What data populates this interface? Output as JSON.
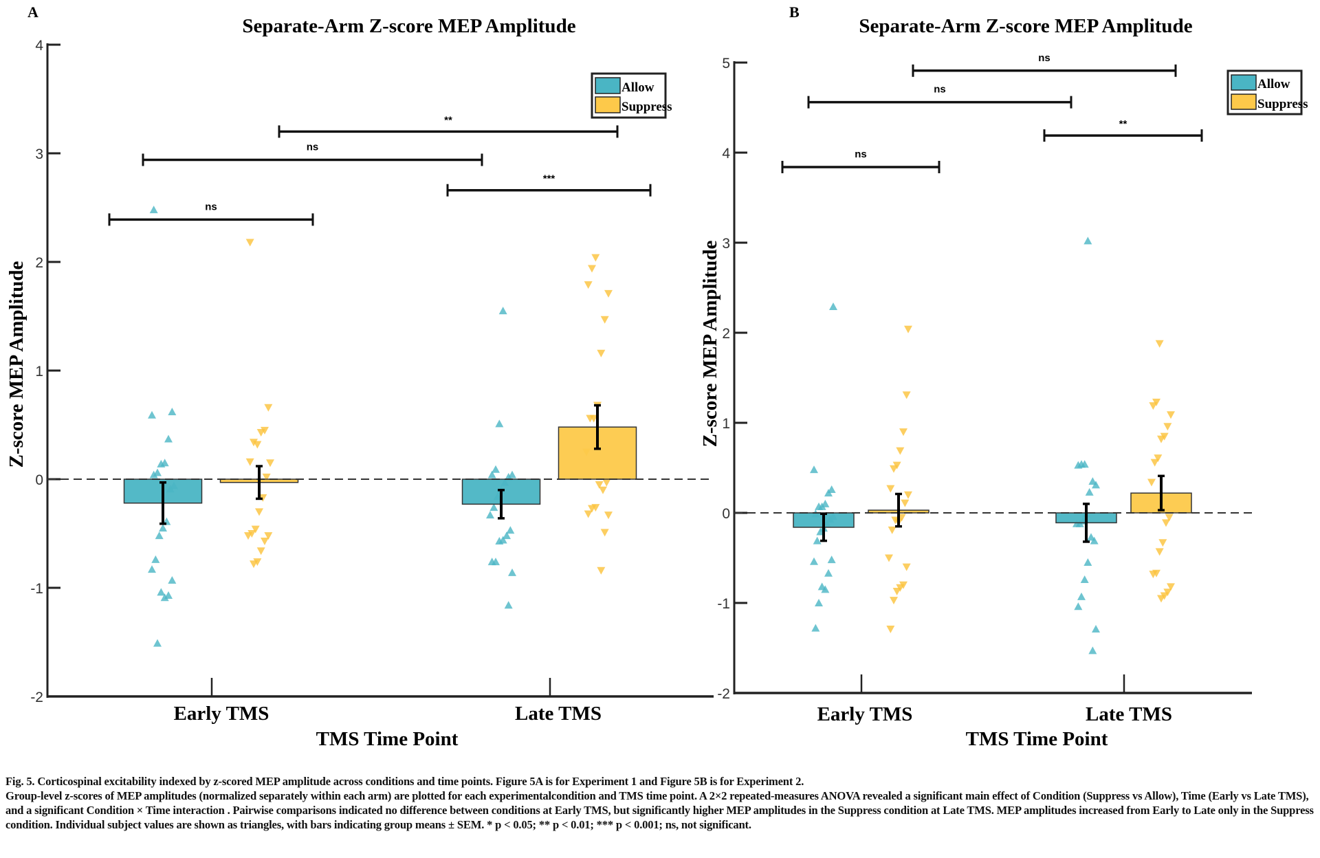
{
  "caption": {
    "line1": "Fig. 5. Corticospinal excitability indexed by z-scored MEP amplitude across conditions and time points. Figure 5A is for Experiment 1 and Figure 5B is for Experiment 2.",
    "body": "Group-level z-scores of MEP amplitudes (normalized separately within each arm) are plotted for each experimentalcondition and TMS time point. A 2×2 repeated-measures ANOVA revealed a significant main effect of Condition (Suppress vs Allow), Time (Early vs Late TMS), and a significant Condition × Time interaction . Pairwise comparisons indicated no difference between conditions at Early TMS, but significantly higher MEP amplitudes in the Suppress condition at Late TMS. MEP amplitudes increased from Early to Late only in the Suppress condition. Individual subject values are shown as triangles, with bars indicating group means ± SEM. * p < 0.05; ** p < 0.01; *** p < 0.001; ns, not significant."
  },
  "colors": {
    "allow": "#4ab5c4",
    "suppress": "#fdc94a",
    "allow_point": "#4ab5c4",
    "suppress_point": "#fbc23a"
  },
  "chart_data": [
    {
      "panel": "A",
      "type": "bar",
      "title": "Separate-Arm Z-score MEP Amplitude",
      "xlabel": "TMS Time Point",
      "ylabel": "Z-score MEP Amplitude",
      "ylim": [
        -2,
        4
      ],
      "yticks": [
        "-2",
        "-1",
        "0",
        "1",
        "2",
        "3",
        "4"
      ],
      "categories": [
        "Early TMS",
        "Late TMS"
      ],
      "legend": {
        "position": "top-right",
        "entries": [
          "Allow",
          "Suppress"
        ]
      },
      "reference_line": {
        "y": 0,
        "style": "dashed"
      },
      "series": [
        {
          "name": "Allow",
          "marker": "triangle-up",
          "values": [
            -0.22,
            -0.23
          ],
          "sem": [
            0.19,
            0.13
          ],
          "points": [
            [
              0.59,
              0.62,
              0.37,
              0.15,
              0.14,
              0.06,
              0.04,
              -0.06,
              -0.09,
              -0.39,
              -0.45,
              -0.52,
              -0.74,
              -0.83,
              -0.93,
              -1.07,
              -1.09,
              -1.04,
              -1.51,
              2.48
            ],
            [
              1.55,
              0.51,
              0.09,
              0.04,
              0.04,
              0.02,
              -0.03,
              -0.1,
              -0.16,
              -0.26,
              -0.33,
              -0.47,
              -0.52,
              -0.56,
              -0.57,
              -0.76,
              -0.76,
              -0.86,
              -1.16
            ]
          ]
        },
        {
          "name": "Suppress",
          "marker": "triangle-down",
          "values": [
            -0.03,
            0.48
          ],
          "sem": [
            0.15,
            0.2
          ],
          "points": [
            [
              0.66,
              0.45,
              0.43,
              0.32,
              0.34,
              0.16,
              0.15,
              0.02,
              -0.17,
              -0.3,
              -0.46,
              -0.5,
              -0.52,
              -0.52,
              -0.57,
              -0.66,
              -0.76,
              -0.78,
              2.18
            ],
            [
              2.04,
              1.94,
              1.79,
              1.71,
              1.47,
              1.16,
              0.68,
              0.56,
              0.56,
              0.25,
              -0.03,
              -0.1,
              -0.05,
              -0.26,
              -0.27,
              -0.32,
              -0.33,
              -0.49,
              -0.84
            ]
          ]
        }
      ],
      "significance": [
        {
          "from": "Allow|Early TMS",
          "to": "Suppress|Early TMS",
          "label": "ns",
          "y": 2.39
        },
        {
          "from": "Allow|Early TMS",
          "to": "Allow|Late TMS",
          "label": "ns",
          "y": 2.94
        },
        {
          "from": "Allow|Late TMS",
          "to": "Suppress|Late TMS",
          "label": "***",
          "y": 2.66
        },
        {
          "from": "Suppress|Early TMS",
          "to": "Suppress|Late TMS",
          "label": "**",
          "y": 3.2
        }
      ]
    },
    {
      "panel": "B",
      "type": "bar",
      "title": "Separate-Arm Z-score MEP Amplitude",
      "xlabel": "TMS Time Point",
      "ylabel": "Z-score MEP Amplitude",
      "ylim": [
        -2,
        5
      ],
      "yticks": [
        "-2",
        "-1",
        "0",
        "1",
        "2",
        "3",
        "4",
        "5"
      ],
      "categories": [
        "Early TMS",
        "Late TMS"
      ],
      "legend": {
        "position": "top-right",
        "entries": [
          "Allow",
          "Suppress"
        ]
      },
      "reference_line": {
        "y": 0,
        "style": "dashed"
      },
      "series": [
        {
          "name": "Allow",
          "marker": "triangle-up",
          "values": [
            -0.16,
            -0.11
          ],
          "sem": [
            0.15,
            0.21
          ],
          "points": [
            [
              0.48,
              0.26,
              0.22,
              0.1,
              0.07,
              0.07,
              -0.01,
              -0.04,
              -0.07,
              -0.12,
              -0.17,
              -0.21,
              -0.31,
              -0.54,
              -0.52,
              -0.67,
              -0.85,
              -0.82,
              -1.0,
              -1.28,
              2.29
            ],
            [
              3.02,
              0.54,
              0.54,
              0.53,
              0.31,
              0.35,
              0.23,
              -0.01,
              -0.09,
              -0.12,
              -0.12,
              -0.31,
              -0.27,
              -0.55,
              -0.74,
              -0.93,
              -1.04,
              -1.29,
              -1.53
            ]
          ]
        },
        {
          "name": "Suppress",
          "marker": "triangle-down",
          "values": [
            0.03,
            0.22
          ],
          "sem": [
            0.18,
            0.19
          ],
          "points": [
            [
              1.31,
              0.9,
              0.69,
              0.53,
              0.49,
              0.27,
              0.2,
              0.11,
              -0.05,
              -0.1,
              -0.08,
              -0.19,
              -0.5,
              -0.6,
              -0.8,
              -0.83,
              -0.87,
              -0.97,
              -1.29,
              2.04
            ],
            [
              1.88,
              1.23,
              1.19,
              1.09,
              0.96,
              0.85,
              0.82,
              0.61,
              0.56,
              0.34,
              -0.05,
              -0.11,
              -0.33,
              -0.43,
              -0.67,
              -0.68,
              -0.82,
              -0.88,
              -0.92,
              -0.95
            ]
          ]
        }
      ],
      "significance": [
        {
          "from": "Allow|Early TMS",
          "to": "Suppress|Early TMS",
          "label": "ns",
          "y": 3.84
        },
        {
          "from": "Allow|Late TMS",
          "to": "Suppress|Late TMS",
          "label": "**",
          "y": 4.19
        },
        {
          "from": "Allow|Early TMS",
          "to": "Allow|Late TMS",
          "label": "ns",
          "y": 4.56
        },
        {
          "from": "Suppress|Early TMS",
          "to": "Suppress|Late TMS",
          "label": "ns",
          "y": 4.91
        }
      ]
    }
  ]
}
